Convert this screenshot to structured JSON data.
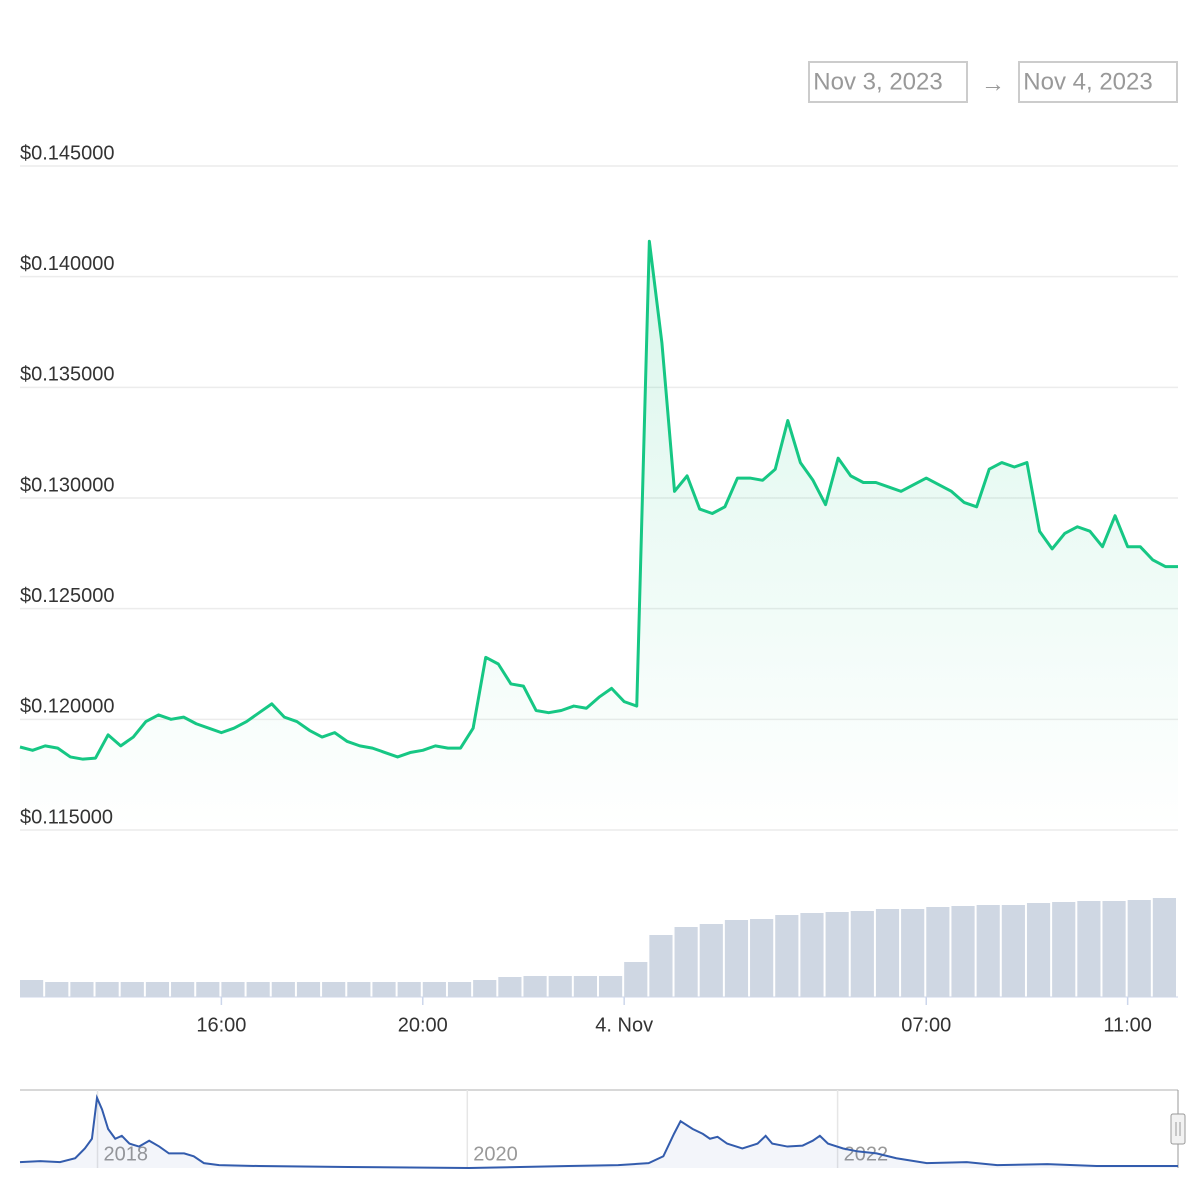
{
  "date_range": {
    "from": "Nov 3, 2023",
    "separator": "→",
    "to": "Nov 4, 2023"
  },
  "chart_data": [
    {
      "type": "line",
      "color": "#16c784",
      "grid": true,
      "x": [
        "2023-11-03T11:00Z",
        "2023-11-03T11:15Z",
        "2023-11-03T11:30Z",
        "2023-11-03T11:45Z",
        "2023-11-03T12:00Z",
        "2023-11-03T12:15Z",
        "2023-11-03T12:30Z",
        "2023-11-03T12:45Z",
        "2023-11-03T13:00Z",
        "2023-11-03T13:15Z",
        "2023-11-03T13:30Z",
        "2023-11-03T13:45Z",
        "2023-11-03T14:00Z",
        "2023-11-03T14:15Z",
        "2023-11-03T14:30Z",
        "2023-11-03T14:45Z",
        "2023-11-03T15:00Z",
        "2023-11-03T15:15Z",
        "2023-11-03T15:30Z",
        "2023-11-03T15:45Z",
        "2023-11-03T16:00Z",
        "2023-11-03T16:15Z",
        "2023-11-03T16:30Z",
        "2023-11-03T16:45Z",
        "2023-11-03T17:00Z",
        "2023-11-03T17:15Z",
        "2023-11-03T17:30Z",
        "2023-11-03T17:45Z",
        "2023-11-03T18:00Z",
        "2023-11-03T18:15Z",
        "2023-11-03T18:30Z",
        "2023-11-03T18:45Z",
        "2023-11-03T19:00Z",
        "2023-11-03T19:15Z",
        "2023-11-03T19:30Z",
        "2023-11-03T19:45Z",
        "2023-11-03T20:00Z",
        "2023-11-03T20:15Z",
        "2023-11-03T20:30Z",
        "2023-11-03T20:45Z",
        "2023-11-03T21:00Z",
        "2023-11-03T21:15Z",
        "2023-11-03T21:30Z",
        "2023-11-03T21:45Z",
        "2023-11-03T22:00Z",
        "2023-11-03T22:15Z",
        "2023-11-03T22:30Z",
        "2023-11-03T22:45Z",
        "2023-11-03T23:00Z",
        "2023-11-03T23:15Z",
        "2023-11-03T23:30Z",
        "2023-11-03T23:45Z",
        "2023-11-04T00:00Z",
        "2023-11-04T00:15Z",
        "2023-11-04T00:30Z",
        "2023-11-04T00:45Z",
        "2023-11-04T01:00Z",
        "2023-11-04T01:15Z",
        "2023-11-04T01:30Z",
        "2023-11-04T01:45Z",
        "2023-11-04T02:00Z",
        "2023-11-04T02:15Z",
        "2023-11-04T02:30Z",
        "2023-11-04T02:45Z",
        "2023-11-04T03:00Z",
        "2023-11-04T03:15Z",
        "2023-11-04T03:30Z",
        "2023-11-04T03:45Z",
        "2023-11-04T04:00Z",
        "2023-11-04T04:15Z",
        "2023-11-04T04:30Z",
        "2023-11-04T04:45Z",
        "2023-11-04T05:00Z",
        "2023-11-04T05:15Z",
        "2023-11-04T05:30Z",
        "2023-11-04T05:45Z",
        "2023-11-04T06:00Z",
        "2023-11-04T06:15Z",
        "2023-11-04T06:30Z",
        "2023-11-04T06:45Z",
        "2023-11-04T07:00Z",
        "2023-11-04T07:15Z",
        "2023-11-04T07:30Z",
        "2023-11-04T07:45Z",
        "2023-11-04T08:00Z",
        "2023-11-04T08:15Z",
        "2023-11-04T08:30Z",
        "2023-11-04T08:45Z",
        "2023-11-04T09:00Z",
        "2023-11-04T09:15Z",
        "2023-11-04T09:30Z",
        "2023-11-04T09:45Z",
        "2023-11-04T10:00Z"
      ],
      "values": [
        0.11875,
        0.1186,
        0.1188,
        0.1187,
        0.1183,
        0.1182,
        0.11825,
        0.1193,
        0.1188,
        0.1192,
        0.1199,
        0.1202,
        0.12,
        0.1201,
        0.1198,
        0.1196,
        0.1194,
        0.1196,
        0.1199,
        0.1203,
        0.1207,
        0.1201,
        0.1199,
        0.1195,
        0.1192,
        0.1194,
        0.119,
        0.1188,
        0.1187,
        0.1185,
        0.1183,
        0.1185,
        0.1186,
        0.1188,
        0.1187,
        0.1187,
        0.1196,
        0.1228,
        0.1225,
        0.1216,
        0.1215,
        0.1204,
        0.1203,
        0.1204,
        0.1206,
        0.1205,
        0.121,
        0.1214,
        0.1208,
        0.1206,
        0.1416,
        0.137,
        0.1303,
        0.131,
        0.1295,
        0.1293,
        0.1296,
        0.1309,
        0.1309,
        0.1308,
        0.1313,
        0.1335,
        0.1316,
        0.1308,
        0.1297,
        0.1318,
        0.131,
        0.1307,
        0.1307,
        0.1305,
        0.1303,
        0.1306,
        0.1309,
        0.1306,
        0.1303,
        0.1298,
        0.1296,
        0.1313,
        0.1316,
        0.1314,
        0.1316,
        0.1285,
        0.1277,
        0.1284,
        0.1287,
        0.1285,
        0.1278,
        0.1292,
        0.1278,
        0.1278,
        0.1272,
        0.1269,
        0.1269
      ],
      "xlim": [
        "2023-11-03T12:00+01:00",
        "2023-11-04T12:00+02:00"
      ],
      "xticks": [
        {
          "value": "2023-11-03T16:00+01:00",
          "label": "16:00"
        },
        {
          "value": "2023-11-03T20:00+01:00",
          "label": "20:00"
        },
        {
          "value": "2023-11-04T00:00+01:00",
          "label": "4. Nov"
        },
        {
          "value": "2023-11-04T07:00+02:00",
          "label": "07:00"
        },
        {
          "value": "2023-11-04T11:00+02:00",
          "label": "11:00"
        }
      ],
      "ylim": [
        0.115,
        0.145
      ],
      "yticks": [
        {
          "value": 0.145,
          "label": "$0.145000"
        },
        {
          "value": 0.14,
          "label": "$0.140000"
        },
        {
          "value": 0.135,
          "label": "$0.135000"
        },
        {
          "value": 0.13,
          "label": "$0.130000"
        },
        {
          "value": 0.125,
          "label": "$0.125000"
        },
        {
          "value": 0.12,
          "label": "$0.120000"
        },
        {
          "value": 0.115,
          "label": "$0.115000"
        }
      ]
    },
    {
      "type": "bar",
      "color": "#cfd7e3",
      "x": [
        "2023-11-03T11:00Z",
        "2023-11-03T11:30Z",
        "2023-11-03T12:00Z",
        "2023-11-03T12:30Z",
        "2023-11-03T13:00Z",
        "2023-11-03T13:30Z",
        "2023-11-03T14:00Z",
        "2023-11-03T14:30Z",
        "2023-11-03T15:00Z",
        "2023-11-03T15:30Z",
        "2023-11-03T16:00Z",
        "2023-11-03T16:30Z",
        "2023-11-03T17:00Z",
        "2023-11-03T17:30Z",
        "2023-11-03T18:00Z",
        "2023-11-03T18:30Z",
        "2023-11-03T19:00Z",
        "2023-11-03T19:30Z",
        "2023-11-03T20:00Z",
        "2023-11-03T20:30Z",
        "2023-11-03T21:00Z",
        "2023-11-03T21:30Z",
        "2023-11-03T22:00Z",
        "2023-11-03T22:30Z",
        "2023-11-03T23:00Z",
        "2023-11-03T23:30Z",
        "2023-11-04T00:00Z",
        "2023-11-04T00:30Z",
        "2023-11-04T01:00Z",
        "2023-11-04T01:30Z",
        "2023-11-04T02:00Z",
        "2023-11-04T02:30Z",
        "2023-11-04T03:00Z",
        "2023-11-04T03:30Z",
        "2023-11-04T04:00Z",
        "2023-11-04T04:30Z",
        "2023-11-04T05:00Z",
        "2023-11-04T05:30Z",
        "2023-11-04T06:00Z",
        "2023-11-04T06:30Z",
        "2023-11-04T07:00Z",
        "2023-11-04T07:30Z",
        "2023-11-04T08:00Z",
        "2023-11-04T08:30Z",
        "2023-11-04T09:00Z",
        "2023-11-04T09:30Z"
      ],
      "values": [
        17,
        15,
        15,
        15,
        15,
        15,
        15,
        15,
        15,
        15,
        15,
        15,
        15,
        15,
        15,
        15,
        15,
        15,
        17,
        20,
        21,
        21,
        21,
        21,
        35,
        62,
        70,
        73,
        77,
        78,
        82,
        84,
        85,
        86,
        88,
        88,
        90,
        91,
        92,
        92,
        94,
        95,
        96,
        96,
        97,
        99
      ],
      "ylim": [
        0,
        100
      ]
    },
    {
      "type": "area",
      "color": "#335cad",
      "x": [
        "2017-08-01",
        "2017-09-10",
        "2017-10-19",
        "2017-11-18",
        "2017-12-07",
        "2017-12-21",
        "2017-12-31",
        "2018-01-10",
        "2018-01-22",
        "2018-02-05",
        "2018-02-18",
        "2018-03-05",
        "2018-03-24",
        "2018-04-13",
        "2018-05-03",
        "2018-05-22",
        "2018-06-21",
        "2018-07-10",
        "2018-07-30",
        "2018-08-29",
        "2018-11-16",
        "2019-05-10",
        "2020-01-04",
        "2020-07-19",
        "2020-10-25",
        "2020-12-24",
        "2021-01-22",
        "2021-02-12",
        "2021-02-25",
        "2021-03-21",
        "2021-04-10",
        "2021-04-24",
        "2021-05-09",
        "2021-05-28",
        "2021-06-27",
        "2021-07-27",
        "2021-08-12",
        "2021-08-25",
        "2021-09-24",
        "2021-10-24",
        "2021-11-13",
        "2021-11-27",
        "2021-12-13",
        "2022-01-12",
        "2022-02-10",
        "2022-03-19",
        "2022-04-27",
        "2022-06-26",
        "2022-09-13",
        "2022-11-12",
        "2023-02-19",
        "2023-05-27",
        "2023-11-04"
      ],
      "values": [
        6,
        7,
        6,
        10,
        20,
        30,
        72,
        60,
        40,
        30,
        33,
        25,
        22,
        28,
        22,
        15,
        15,
        12,
        5,
        3,
        2,
        1,
        0,
        2,
        3,
        5,
        12,
        35,
        48,
        40,
        35,
        30,
        32,
        25,
        20,
        25,
        33,
        25,
        22,
        23,
        28,
        33,
        25,
        20,
        17,
        15,
        10,
        5,
        6,
        3,
        4,
        2,
        2
      ],
      "xlim": [
        "2017-08-01",
        "2023-11-04"
      ],
      "xticks": [
        {
          "value": "2018-01-01",
          "label": "2018"
        },
        {
          "value": "2020-01-01",
          "label": "2020"
        },
        {
          "value": "2022-01-01",
          "label": "2022"
        }
      ],
      "ylim": [
        0,
        80
      ]
    }
  ]
}
